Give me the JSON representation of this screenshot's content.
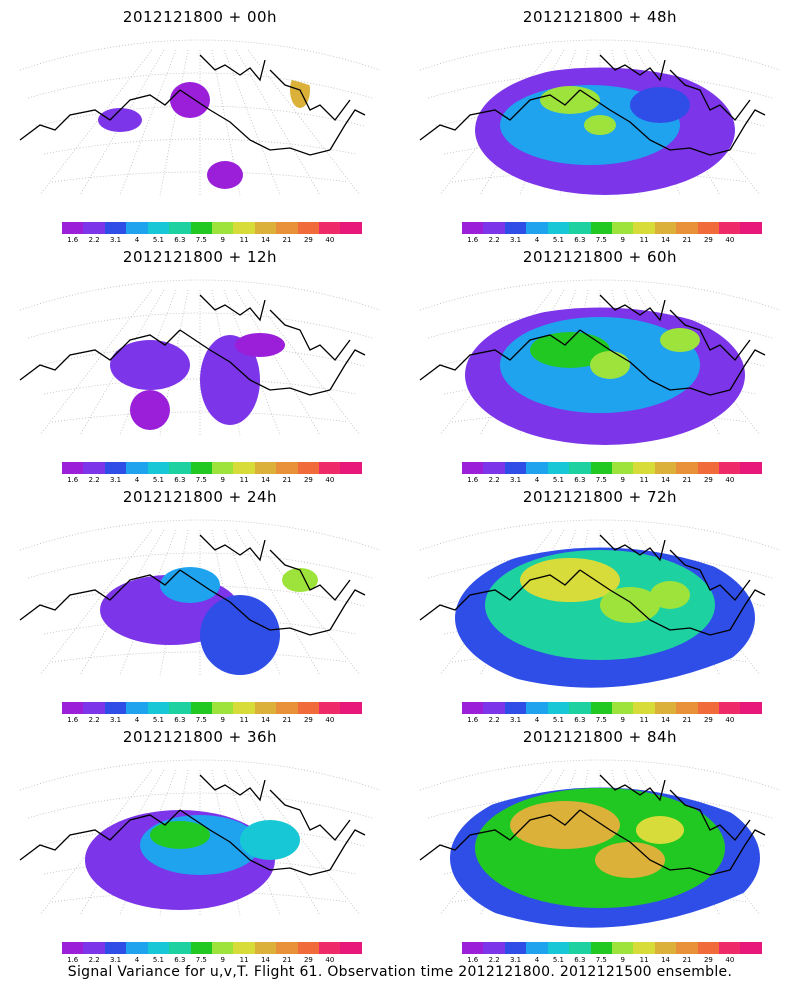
{
  "panels": [
    {
      "title": "2012121800 + 00h",
      "level": 0
    },
    {
      "title": "2012121800 + 48h",
      "level": 4
    },
    {
      "title": "2012121800 + 12h",
      "level": 1
    },
    {
      "title": "2012121800 + 60h",
      "level": 5
    },
    {
      "title": "2012121800 + 24h",
      "level": 2
    },
    {
      "title": "2012121800 + 72h",
      "level": 6
    },
    {
      "title": "2012121800 + 36h",
      "level": 3
    },
    {
      "title": "2012121800 + 84h",
      "level": 7
    }
  ],
  "colorbar": {
    "colors": [
      "#9b1fd9",
      "#7c35e8",
      "#2f4ee8",
      "#1fa3ef",
      "#18c7d6",
      "#1ed1a0",
      "#22c822",
      "#9ee33c",
      "#d7dc3a",
      "#dbb13a",
      "#e8903a",
      "#f06a3a",
      "#ee2a68",
      "#e8187a"
    ],
    "labels": [
      "1.6",
      "2.2",
      "3.1",
      "4",
      "5.1",
      "6.3",
      "7.5",
      "9",
      "11",
      "14",
      "21",
      "29",
      "40"
    ]
  },
  "footer": "Signal Variance for u,v,T. Flight 61. Observation time 2012121800. 2012121500 ensemble."
}
